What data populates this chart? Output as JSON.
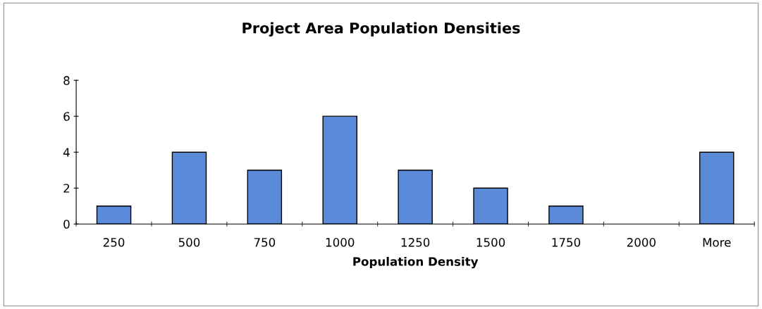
{
  "chart_data": {
    "type": "bar",
    "title": "Project Area Population Densities",
    "xlabel": "Population Density",
    "categories": [
      "250",
      "500",
      "750",
      "1000",
      "1250",
      "1500",
      "1750",
      "2000",
      "More"
    ],
    "values": [
      1,
      4,
      3,
      6,
      3,
      2,
      1,
      0,
      4
    ],
    "color": "#5b8ad8",
    "ylim": [
      0,
      8
    ],
    "yticks": [
      0,
      2,
      4,
      6,
      8
    ],
    "grid": false,
    "legend": false
  }
}
